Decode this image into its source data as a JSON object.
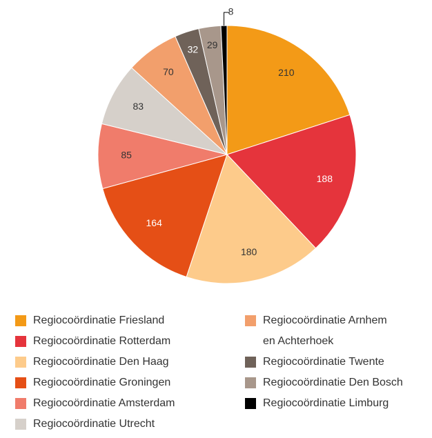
{
  "chart_data": {
    "type": "pie",
    "categories": [
      "Regiocoördinatie Friesland",
      "Regiocoördinatie Rotterdam",
      "Regiocoördinatie Den Haag",
      "Regiocoördinatie Groningen",
      "Regiocoördinatie Amsterdam",
      "Regiocoördinatie Utrecht",
      "Regiocoördinatie Arnhem en Achterhoek",
      "Regiocoördinatie Twente",
      "Regiocoördinatie Den Bosch",
      "Regiocoördinatie Limburg"
    ],
    "values": [
      210,
      188,
      180,
      164,
      85,
      83,
      70,
      32,
      29,
      8
    ],
    "colors": [
      "#f39a17",
      "#e5343c",
      "#fdcb8b",
      "#e54f16",
      "#f07c6b",
      "#d6d0ca",
      "#f29f6c",
      "#6f6259",
      "#a8978b",
      "#000000"
    ],
    "legend": "bottom"
  }
}
